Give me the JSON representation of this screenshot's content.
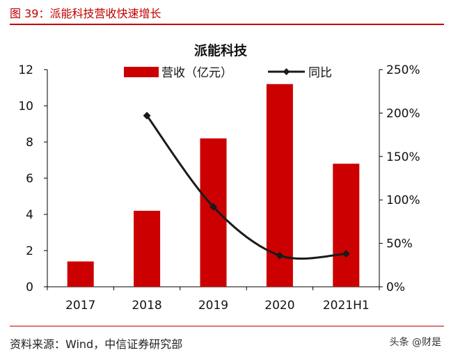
{
  "header": {
    "title": "图 39：派能科技营收快速增长"
  },
  "footer": {
    "source": "资料来源：Wind，中信证券研究部",
    "watermark": "头条 @财是"
  },
  "chart_data": {
    "type": "bar",
    "title": "派能科技",
    "categories": [
      "2017",
      "2018",
      "2019",
      "2020",
      "2021H1"
    ],
    "series": [
      {
        "name": "营收（亿元）",
        "type": "bar",
        "axis": "left",
        "color": "#cc0000",
        "values": [
          1.4,
          4.2,
          8.2,
          11.2,
          6.8
        ]
      },
      {
        "name": "同比",
        "type": "line",
        "axis": "right",
        "color": "#1a1a1a",
        "values": [
          null,
          1.97,
          0.92,
          0.36,
          0.38
        ]
      }
    ],
    "y_left": {
      "min": 0,
      "max": 12,
      "ticks": [
        "0",
        "2",
        "4",
        "6",
        "8",
        "10",
        "12"
      ]
    },
    "y_right": {
      "min": 0,
      "max": 2.5,
      "ticks": [
        "0%",
        "50%",
        "100%",
        "150%",
        "200%",
        "250%"
      ]
    },
    "legend": "top"
  }
}
